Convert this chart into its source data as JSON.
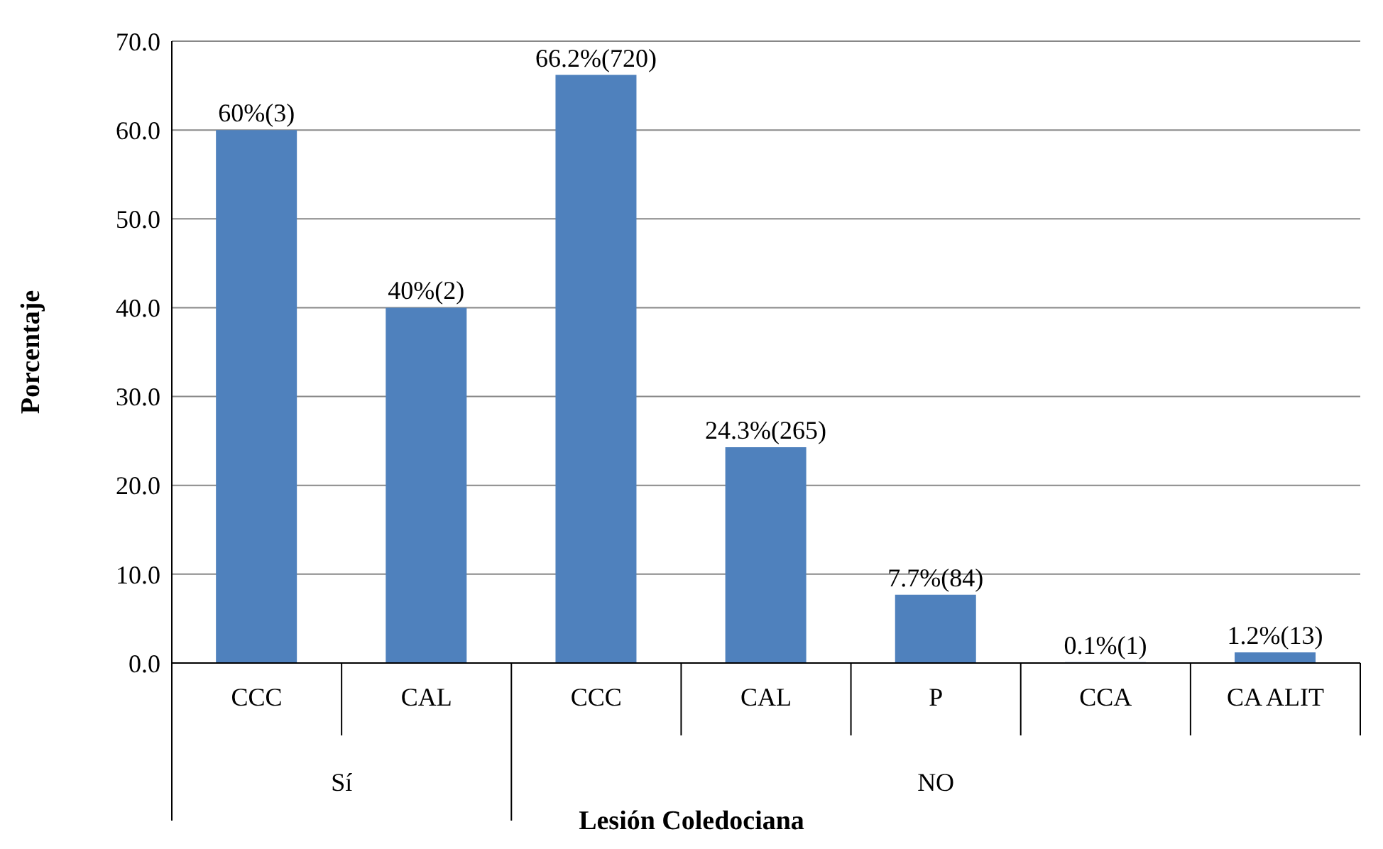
{
  "chart_data": {
    "type": "bar",
    "xlabel": "Lesión Coledociana",
    "ylabel": "Porcentaje",
    "categories": [
      "CCC",
      "CAL",
      "CCC",
      "CAL",
      "P",
      "CCA",
      "CA ALIT"
    ],
    "values": [
      60,
      40,
      66.2,
      24.3,
      7.7,
      0.1,
      1.2
    ],
    "value_labels": [
      "60%(3)",
      "40%(2)",
      "66.2%(720)",
      "24.3%(265)",
      "7.7%(84)",
      "0.1%(1)",
      "1.2%(13)"
    ],
    "color": "#4f81bd",
    "ylim": [
      0,
      70
    ],
    "yticks": [
      {
        "value": 0,
        "label": "0.0"
      },
      {
        "value": 10,
        "label": "10.0"
      },
      {
        "value": 20,
        "label": "20.0"
      },
      {
        "value": 30,
        "label": "30.0"
      },
      {
        "value": 40,
        "label": "40.0"
      },
      {
        "value": 50,
        "label": "50.0"
      },
      {
        "value": 60,
        "label": "60.0"
      },
      {
        "value": 70,
        "label": "70.0"
      }
    ],
    "grid": "y",
    "legend": false,
    "annotations": [
      "Sí",
      "NO"
    ]
  }
}
